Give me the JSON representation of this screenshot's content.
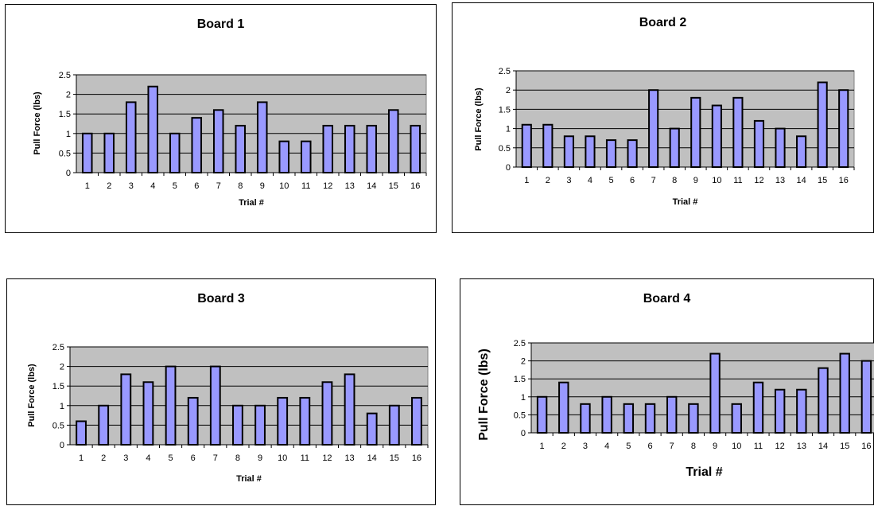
{
  "chart_data": [
    {
      "type": "bar",
      "title": "Board 1",
      "xlabel": "Trial #",
      "ylabel": "Pull Force (lbs)",
      "categories": [
        "1",
        "2",
        "3",
        "4",
        "5",
        "6",
        "7",
        "8",
        "9",
        "10",
        "11",
        "12",
        "13",
        "14",
        "15",
        "16"
      ],
      "values": [
        1,
        1,
        1.8,
        2.2,
        1,
        1.4,
        1.6,
        1.2,
        1.8,
        0.8,
        0.8,
        1.2,
        1.2,
        1.2,
        1.6,
        1.2
      ],
      "ylim": [
        0,
        2.5
      ],
      "yticks": [
        "0",
        "0.5",
        "1",
        "1.5",
        "2",
        "2.5"
      ],
      "grid": true,
      "colors": {
        "bar": "#9999ff",
        "plot_bg": "#c0c0c0"
      }
    },
    {
      "type": "bar",
      "title": "Board 2",
      "xlabel": "Trial #",
      "ylabel": "Pull Force (lbs)",
      "categories": [
        "1",
        "2",
        "3",
        "4",
        "5",
        "6",
        "7",
        "8",
        "9",
        "10",
        "11",
        "12",
        "13",
        "14",
        "15",
        "16"
      ],
      "values": [
        1.1,
        1.1,
        0.8,
        0.8,
        0.7,
        0.7,
        2,
        1,
        1.8,
        1.6,
        1.8,
        1.2,
        1,
        0.8,
        2.2,
        2
      ],
      "ylim": [
        0,
        2.5
      ],
      "yticks": [
        "0",
        "0.5",
        "1",
        "1.5",
        "2",
        "2.5"
      ],
      "grid": true,
      "colors": {
        "bar": "#9999ff",
        "plot_bg": "#c0c0c0"
      }
    },
    {
      "type": "bar",
      "title": "Board 3",
      "xlabel": "Trial #",
      "ylabel": "Pull Force (lbs)",
      "categories": [
        "1",
        "2",
        "3",
        "4",
        "5",
        "6",
        "7",
        "8",
        "9",
        "10",
        "11",
        "12",
        "13",
        "14",
        "15",
        "16"
      ],
      "values": [
        0.6,
        1,
        1.8,
        1.6,
        2,
        1.2,
        2,
        1,
        1,
        1.2,
        1.2,
        1.6,
        1.8,
        0.8,
        1,
        1.2
      ],
      "ylim": [
        0,
        2.5
      ],
      "yticks": [
        "0",
        "0.5",
        "1",
        "1.5",
        "2",
        "2.5"
      ],
      "grid": true,
      "colors": {
        "bar": "#9999ff",
        "plot_bg": "#c0c0c0"
      }
    },
    {
      "type": "bar",
      "title": "Board 4",
      "xlabel": "Trial #",
      "ylabel": "Pull Force (lbs)",
      "categories": [
        "1",
        "2",
        "3",
        "4",
        "5",
        "6",
        "7",
        "8",
        "9",
        "10",
        "11",
        "12",
        "13",
        "14",
        "15",
        "16"
      ],
      "values": [
        1,
        1.4,
        0.8,
        1,
        0.8,
        0.8,
        1,
        0.8,
        2.2,
        0.8,
        1.4,
        1.2,
        1.2,
        1.8,
        2.2,
        2
      ],
      "ylim": [
        0,
        2.5
      ],
      "yticks": [
        "0",
        "0.5",
        "1",
        "1.5",
        "2",
        "2.5"
      ],
      "grid": true,
      "colors": {
        "bar": "#9999ff",
        "plot_bg": "#c0c0c0"
      }
    }
  ]
}
